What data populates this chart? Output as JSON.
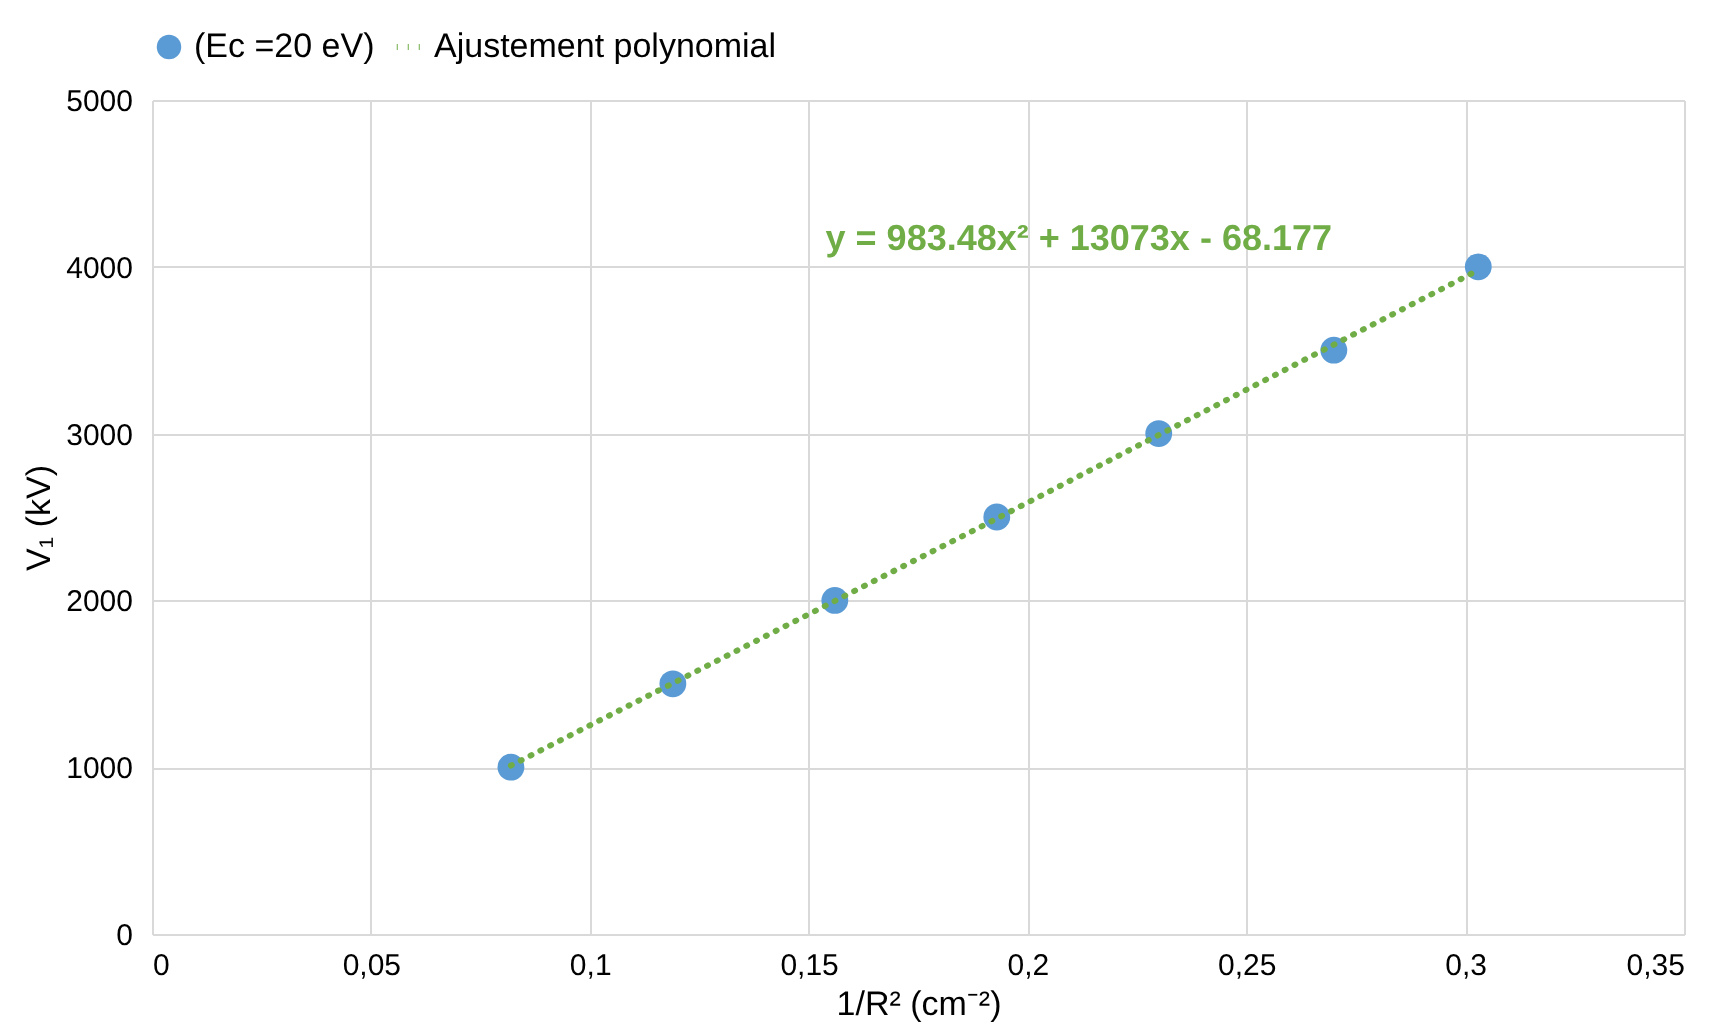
{
  "chart_data": {
    "type": "scatter",
    "xlabel": "1/R² (cm⁻²)",
    "ylabel": "V₁ (kV)",
    "xlim": [
      0,
      0.35
    ],
    "ylim": [
      0,
      5000
    ],
    "xticks": [
      0,
      {
        "value": 0.05,
        "label": "0,05"
      },
      {
        "value": 0.1,
        "label": "0,1"
      },
      {
        "value": 0.15,
        "label": "0,15"
      },
      {
        "value": 0.2,
        "label": "0,2"
      },
      {
        "value": 0.25,
        "label": "0,25"
      },
      {
        "value": 0.3,
        "label": "0,3"
      },
      {
        "value": 0.35,
        "label": "0,35"
      }
    ],
    "yticks": [
      0,
      1000,
      2000,
      3000,
      4000,
      5000
    ],
    "grid": true,
    "legend": "top",
    "series": [
      {
        "name": "(Ec =20 eV)",
        "marker": "circle",
        "color": "#5b9bd5",
        "x": [
          0.082,
          0.119,
          0.156,
          0.193,
          0.23,
          0.27,
          0.303
        ],
        "values": [
          1000,
          1500,
          2000,
          2500,
          3000,
          3500,
          4000
        ]
      },
      {
        "name": "Ajustement polynomial",
        "type": "line",
        "color": "#70ad47",
        "line_style": "dotted",
        "marker": "none",
        "x": [
          0.082,
          0.19,
          0.303
        ],
        "values": [
          1010,
          2450,
          3980
        ]
      }
    ],
    "annotations": [
      "y = 983.48x² + 13073x - 68.177"
    ]
  }
}
